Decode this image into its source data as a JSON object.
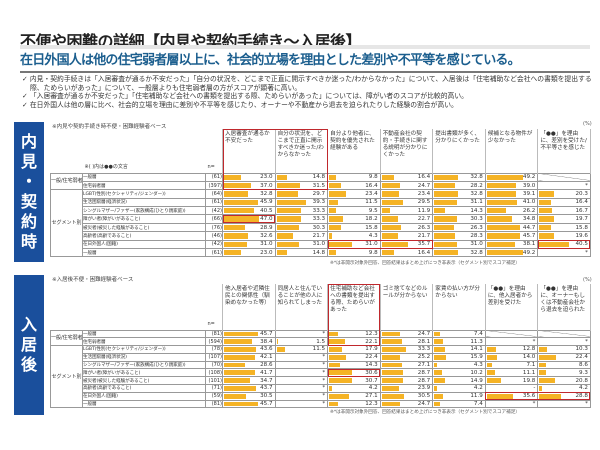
{
  "title": "不便や困難の詳細【内見や契約手続き～入居後】",
  "subtitle": "在日外国人は他の住宅弱者層以上に、社会的立場を理由とした差別や不平等を感じている。",
  "bullets": [
    "✓ 内見・契約手続きは「入居審査が通るか不安だった」「自分の状況を、どこまで正直に開示すべきか迷った/わからなかった」について、入居後は「住宅補助など会社への書類を提出する際、ためらいがあった」について、一般層よりも住宅弱者層の方がスコアが顕著に高い。",
    "✓ 「入居審査が通るか不安だった」「住宅補助など会社への書類を提出する際、ためらいがあった」については、障がい者のスコアが比較的高い。",
    "✓ 在日外国人は他の層に比べ、社会的立場を理由に差別や不平等を感じたり、オーナーや不動産から退去を迫られたりした経験の割合が高い。"
  ],
  "colors": {
    "accent": "#1a4f9c",
    "bar": "#f5b325",
    "highlight": "#c0282d",
    "subtitle": "#1b5e8e"
  },
  "row_labels": [
    "一般層",
    "住宅弱者層",
    "LGBT(性別(セクシャリティ/ジェンダー))",
    "生活困窮層(経済状況)",
    "シングルマザー/ファザー(家族構成(ひとり親家庭))",
    "障がい者(障がいがあること)",
    "被災者(被災した経験があること)",
    "高齢者(高齢であること)",
    "在日外国人(国籍)",
    "一般層"
  ],
  "group_labels": {
    "general": "一般/住宅弱者別",
    "segment": "セグメント別"
  },
  "sections": [
    {
      "side_label": [
        "内",
        "見",
        "・",
        "契",
        "約",
        "時"
      ],
      "base_note": "※内見や契約手続き時不便・困難経験者ベース",
      "paren_note": "※( )内は●●の文言",
      "n_label": "n=",
      "unit": "(%)",
      "n": [
        "(61)",
        "(397)",
        "(64)",
        "(61)",
        "(42)",
        "(66)",
        "(76)",
        "(46)",
        "(42)",
        "(61)"
      ],
      "columns": [
        {
          "label": "入居審査が通るか不安だった",
          "values": [
            "23.0",
            "37.0",
            "32.8",
            "45.9",
            "40.5",
            "47.0",
            "28.9",
            "32.6",
            "31.0",
            "23.0"
          ]
        },
        {
          "label": "自分の状況を、どこまで正直に開示すべきか迷った/わからなかった",
          "values": [
            "14.8",
            "31.5",
            "29.7",
            "39.3",
            "33.3",
            "33.3",
            "30.3",
            "21.7",
            "31.0",
            "14.8"
          ]
        },
        {
          "label": "自分より他者に、契約を優先された経験がある",
          "values": [
            "9.8",
            "16.4",
            "23.4",
            "11.5",
            "9.5",
            "18.2",
            "15.8",
            "4.3",
            "31.0",
            "9.8"
          ]
        },
        {
          "label": "不動産会社の契約・手続きに関する説明が分かりにくかった",
          "values": [
            "16.4",
            "24.7",
            "23.4",
            "29.5",
            "11.9",
            "22.7",
            "26.3",
            "21.7",
            "35.7",
            "16.4"
          ]
        },
        {
          "label": "提出書類が多く、分かりにくかった",
          "values": [
            "32.8",
            "28.2",
            "32.8",
            "31.1",
            "14.3",
            "30.3",
            "26.3",
            "28.3",
            "31.0",
            "32.8"
          ]
        },
        {
          "label": "候補となる物件が少なかった",
          "values": [
            "49.2",
            "39.0",
            "39.1",
            "41.0",
            "26.2",
            "34.8",
            "44.7",
            "45.7",
            "38.1",
            "49.2"
          ]
        },
        {
          "label": "「●●」を理由に、差別を受けた/不平等さを感じた",
          "values": [
            null,
            "*",
            "20.3",
            "16.4",
            "16.7",
            "19.7",
            "15.8",
            "19.6",
            "40.5",
            "*"
          ]
        }
      ],
      "highlights": [
        {
          "rows": [
            0,
            1
          ],
          "cols": [
            0,
            1
          ],
          "header": true
        },
        {
          "rows": [
            5,
            5
          ],
          "cols": [
            0,
            0
          ],
          "header": false
        },
        {
          "rows": [
            8,
            8
          ],
          "cols": [
            2,
            3
          ],
          "header": false
        },
        {
          "rows": [
            8,
            8
          ],
          "cols": [
            6,
            6
          ],
          "header": false
        }
      ],
      "footnote": "※*は非開示対象外回答、回答結果はまとめ上げにつき非表示（セグメント別でスコア補足）"
    },
    {
      "side_label": [
        "入",
        "居",
        "後"
      ],
      "base_note": "※入居後不便・困難経験者ベース",
      "paren_note": "",
      "n_label": "n=",
      "unit": "(%)",
      "n": [
        "(81)",
        "(594)",
        "(78)",
        "(107)",
        "(70)",
        "(108)",
        "(101)",
        "(71)",
        "(59)",
        "(81)"
      ],
      "columns": [
        {
          "label": "他入居者や近隣住民との関係性（馴染めなかった等）",
          "values": [
            "45.7",
            "38.4",
            "43.6",
            "42.1",
            "28.6",
            "41.7",
            "34.7",
            "43.7",
            "30.5",
            "45.7"
          ]
        },
        {
          "label": "同居人と住んでいることが他の人に知られてしまった",
          "values": [
            "*",
            "1.5",
            "11.5",
            "*",
            "*",
            "*",
            "*",
            "*",
            "*",
            "*"
          ]
        },
        {
          "label": "住宅補助など会社への書類を提出する際、ためらいがあった",
          "values": [
            "12.3",
            "22.1",
            "17.9",
            "22.4",
            "14.3",
            "30.6",
            "30.7",
            "4.2",
            "27.1",
            "12.3"
          ]
        },
        {
          "label": "ゴミ捨てなどのルールが分からない",
          "values": [
            "24.7",
            "28.1",
            "33.3",
            "25.2",
            "27.1",
            "28.7",
            "28.7",
            "23.9",
            "30.5",
            "24.7"
          ]
        },
        {
          "label": "家賃の払い方が分からない",
          "values": [
            "7.4",
            "11.3",
            "14.1",
            "15.9",
            "4.3",
            "10.2",
            "14.9",
            "4.2",
            "11.9",
            "7.4"
          ]
        },
        {
          "label": "「●●」を理由に、他入居者から差別を受けた",
          "values": [
            null,
            "*",
            "12.8",
            "14.0",
            "7.1",
            "11.1",
            "19.8",
            "-",
            "35.6",
            "*"
          ]
        },
        {
          "label": "「●●」を理由に、オーナーもしくは不動産会社から退去を迫られた",
          "values": [
            null,
            "*",
            "10.3",
            "22.4",
            "8.6",
            "9.3",
            "20.8",
            "4.2",
            "28.8",
            "*"
          ]
        }
      ],
      "highlights": [
        {
          "rows": [
            0,
            1
          ],
          "cols": [
            2,
            2
          ],
          "header": true
        },
        {
          "rows": [
            5,
            5
          ],
          "cols": [
            2,
            2
          ],
          "header": false
        },
        {
          "rows": [
            8,
            8
          ],
          "cols": [
            5,
            6
          ],
          "header": false
        }
      ],
      "footnote": "※*は非開示対象外回答、回答結果はまとめ上げにつき非表示（セグメント別でスコア補足）"
    }
  ]
}
